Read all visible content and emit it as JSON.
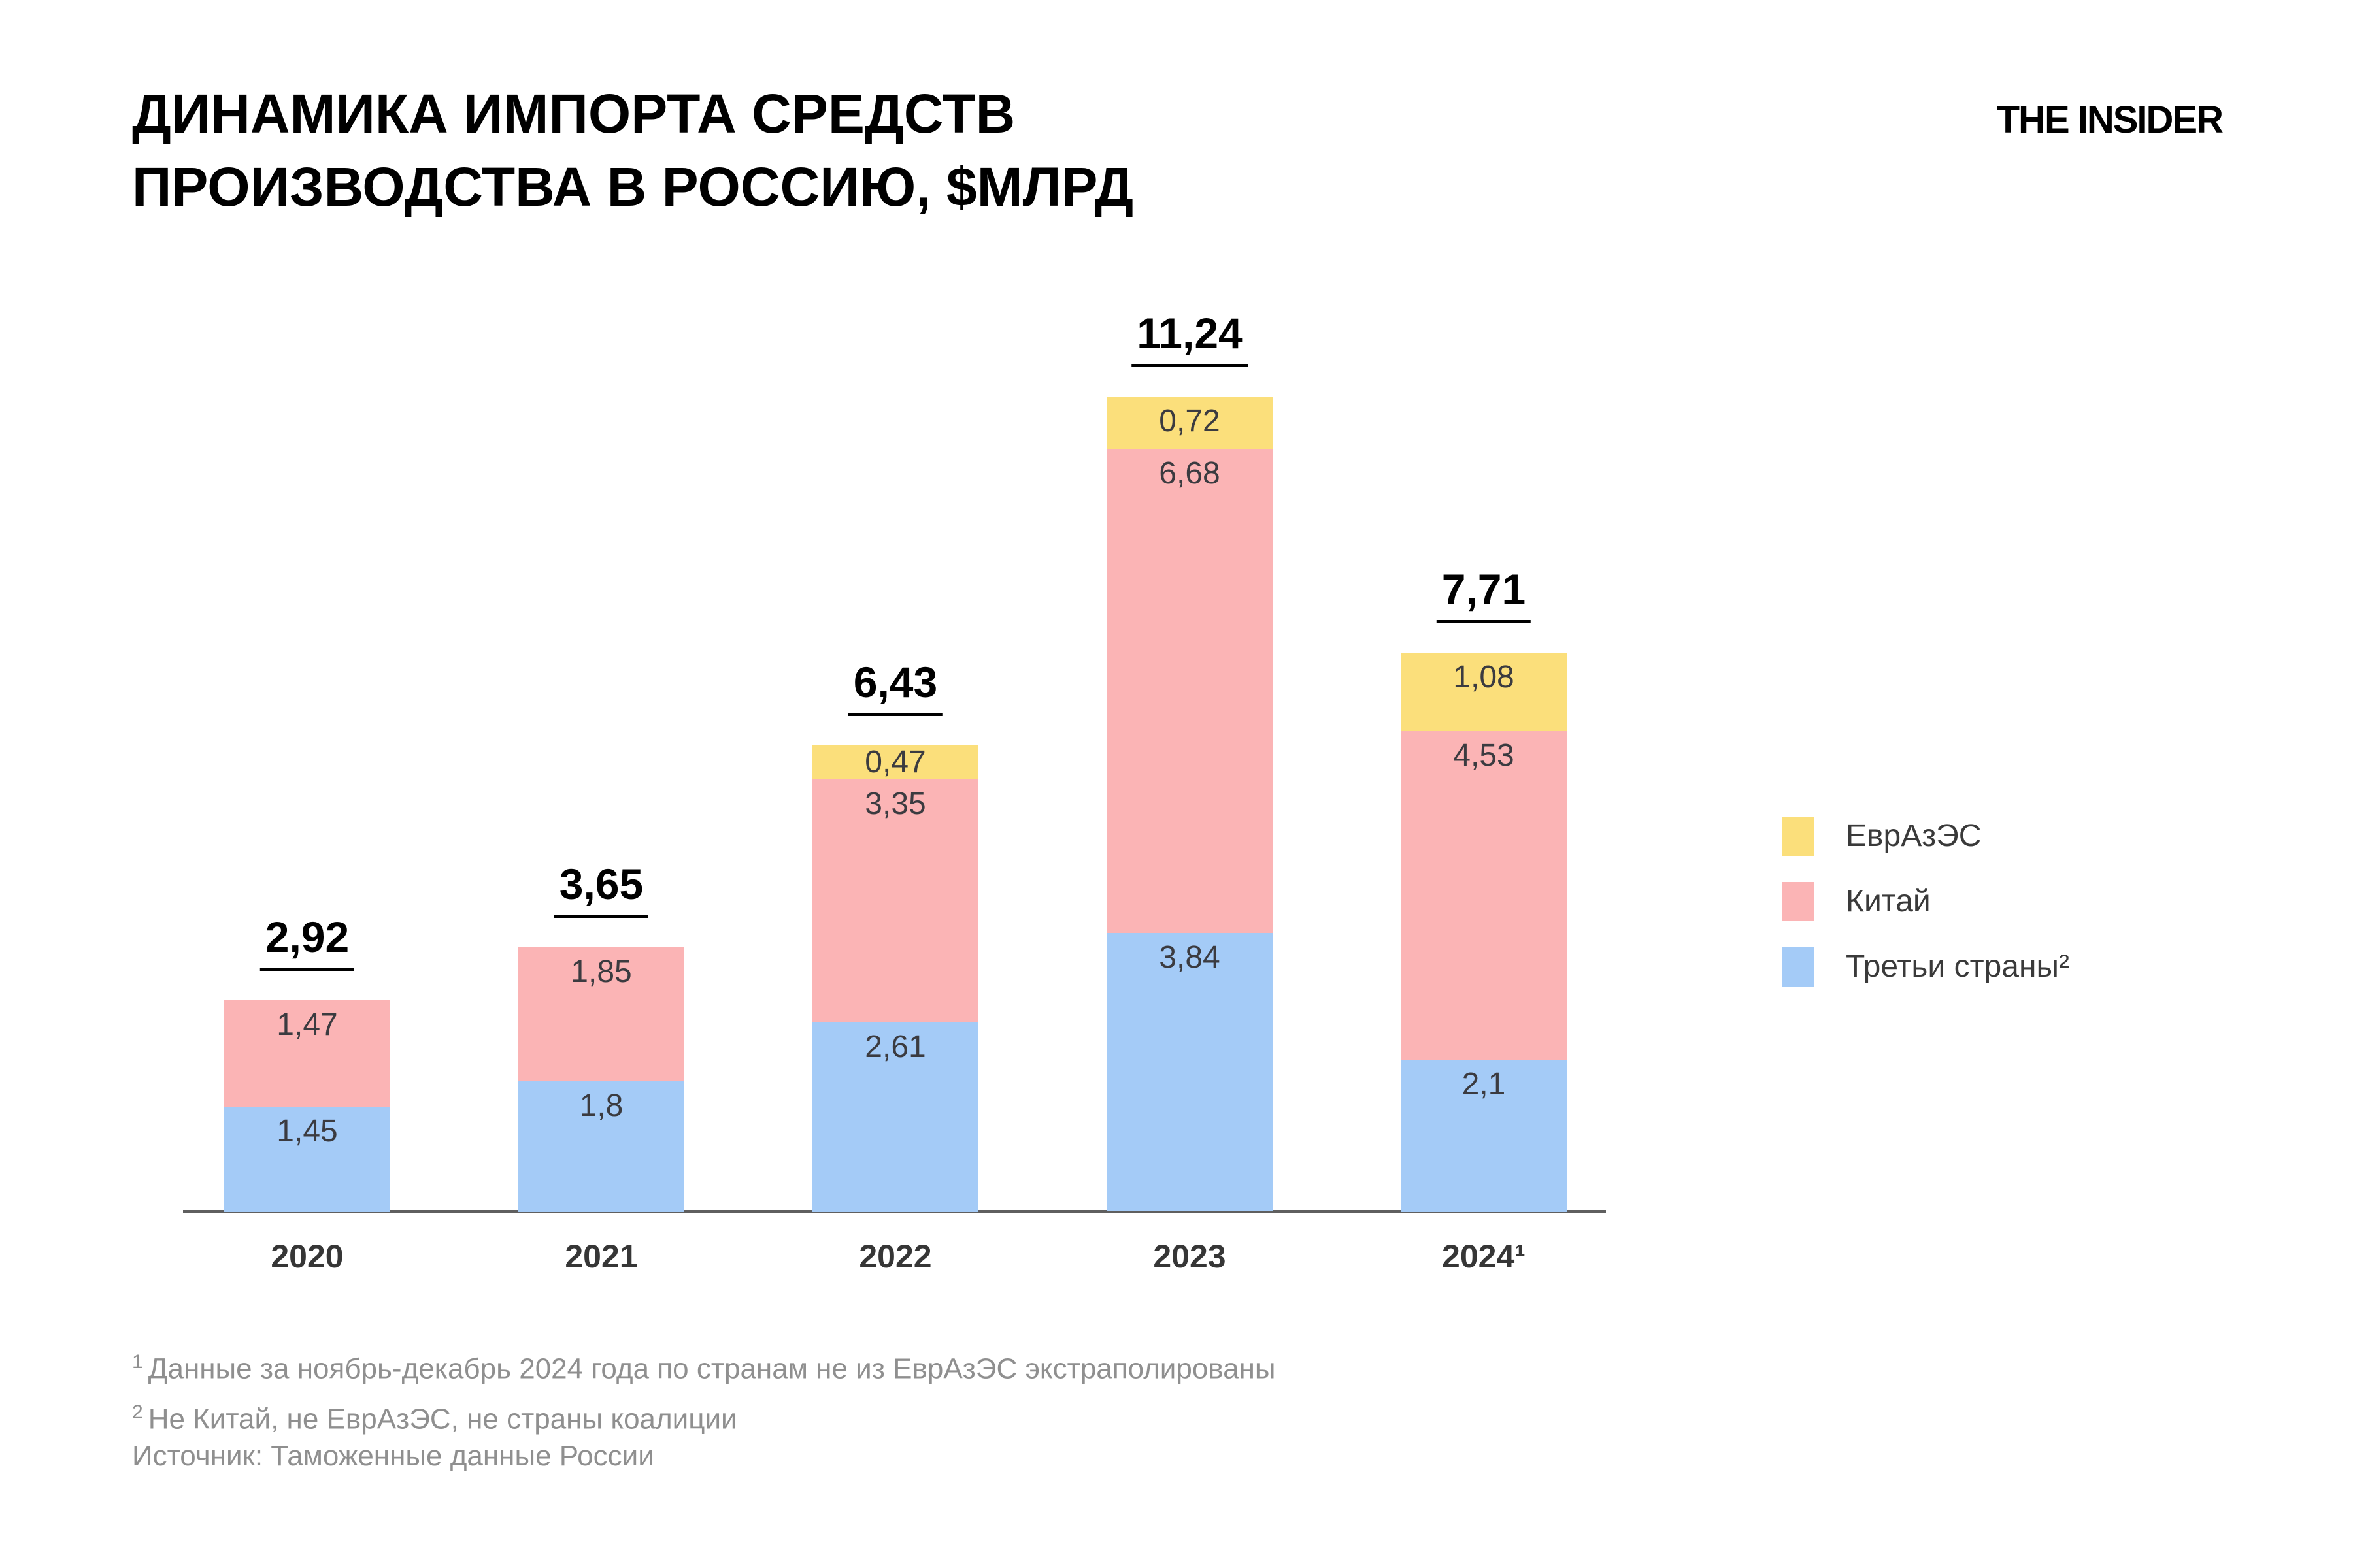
{
  "title": {
    "line1": "ДИНАМИКА ИМПОРТА СРЕДСТВ",
    "line2": "ПРОИЗВОДСТВА В РОССИЮ, $МЛРД"
  },
  "logo": "THE INSIDER",
  "legend": [
    {
      "key": "eurasec",
      "label": "ЕврАзЭС",
      "color": "#FBDF7B"
    },
    {
      "key": "china",
      "label": "Китай",
      "color": "#FBB4B5"
    },
    {
      "key": "third-countries",
      "label": "Третьи страны²",
      "color": "#A4CBF7"
    }
  ],
  "footnotes": [
    {
      "marker": "1",
      "text": "Данные за ноябрь-декабрь 2024 года по странам не из ЕврАзЭС экстраполированы"
    },
    {
      "marker": "2",
      "text": "Не Китай, не ЕврАзЭС, не страны коалиции"
    }
  ],
  "source": "Источник: Таможенные данные России",
  "chart_data": {
    "type": "bar",
    "stacked": true,
    "title": "ДИНАМИКА ИМПОРТА СРЕДСТВ ПРОИЗВОДСТВА В РОССИЮ, $МЛРД",
    "xlabel": "",
    "ylabel": "",
    "grid": false,
    "legend_position": "right",
    "value_format": "comma-decimal",
    "categories": [
      "2020",
      "2021",
      "2022",
      "2023",
      "2024¹"
    ],
    "series": [
      {
        "key": "third-countries",
        "name": "Третьи страны²",
        "color": "#A4CBF7",
        "values": [
          1.45,
          1.8,
          2.61,
          3.84,
          2.1
        ],
        "labels": [
          "1,45",
          "1,8",
          "2,61",
          "3,84",
          "2,1"
        ]
      },
      {
        "key": "china",
        "name": "Китай",
        "color": "#FBB4B5",
        "values": [
          1.47,
          1.85,
          3.35,
          6.68,
          4.53
        ],
        "labels": [
          "1,47",
          "1,85",
          "3,35",
          "6,68",
          "4,53"
        ]
      },
      {
        "key": "eurasec",
        "name": "ЕврАзЭС",
        "color": "#FBDF7B",
        "values": [
          0,
          0,
          0.47,
          0.72,
          1.08
        ],
        "labels": [
          "",
          "",
          "0,47",
          "0,72",
          "1,08"
        ]
      }
    ],
    "totals": [
      "2,92",
      "3,65",
      "6,43",
      "11,24",
      "7,71"
    ]
  }
}
